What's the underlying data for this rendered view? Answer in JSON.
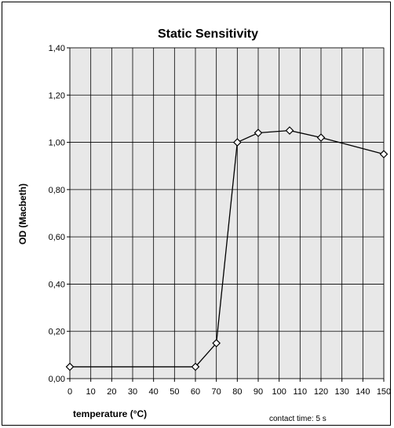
{
  "chart_data": {
    "type": "line",
    "title": "Static Sensitivity",
    "xlabel": "temperature (°C)",
    "ylabel": "OD (Macbeth)",
    "annotation": "contact time: 5 s",
    "xlim": [
      0,
      150
    ],
    "ylim": [
      0,
      1.4
    ],
    "x_ticks": [
      0,
      10,
      20,
      30,
      40,
      50,
      60,
      70,
      80,
      90,
      100,
      110,
      120,
      130,
      140,
      150
    ],
    "y_ticks": [
      0,
      0.2,
      0.4,
      0.6,
      0.8,
      1.0,
      1.2,
      1.4
    ],
    "y_tick_labels": [
      "0,00",
      "0,20",
      "0,40",
      "0,60",
      "0,80",
      "1,00",
      "1,20",
      "1,40"
    ],
    "grid": true,
    "plot_background": "#e8e8e8",
    "series": [
      {
        "marker": "diamond",
        "color": "#000000",
        "x": [
          0,
          60,
          70,
          80,
          90,
          105,
          120,
          150
        ],
        "y": [
          0.05,
          0.05,
          0.15,
          1.0,
          1.04,
          1.05,
          1.02,
          0.95
        ]
      }
    ]
  }
}
